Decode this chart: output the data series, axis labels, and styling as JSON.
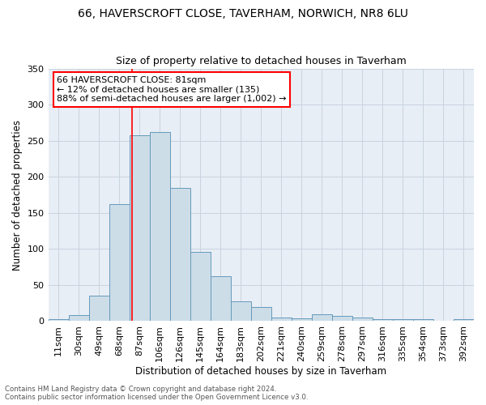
{
  "title1": "66, HAVERSCROFT CLOSE, TAVERHAM, NORWICH, NR8 6LU",
  "title2": "Size of property relative to detached houses in Taverham",
  "xlabel": "Distribution of detached houses by size in Taverham",
  "ylabel": "Number of detached properties",
  "bar_labels": [
    "11sqm",
    "30sqm",
    "49sqm",
    "68sqm",
    "87sqm",
    "106sqm",
    "126sqm",
    "145sqm",
    "164sqm",
    "183sqm",
    "202sqm",
    "221sqm",
    "240sqm",
    "259sqm",
    "278sqm",
    "297sqm",
    "316sqm",
    "335sqm",
    "354sqm",
    "373sqm",
    "392sqm"
  ],
  "bar_values": [
    3,
    8,
    35,
    162,
    258,
    262,
    185,
    96,
    62,
    28,
    20,
    5,
    4,
    10,
    7,
    5,
    3,
    3,
    3,
    0,
    3
  ],
  "bar_color": "#ccdde8",
  "bar_edge_color": "#6699bb",
  "vline_color": "red",
  "vline_x_index": 3.63,
  "annotation_text": "66 HAVERSCROFT CLOSE: 81sqm\n← 12% of detached houses are smaller (135)\n88% of semi-detached houses are larger (1,002) →",
  "annotation_box_color": "white",
  "annotation_box_edge_color": "red",
  "plot_bg_color": "#e8eef5",
  "grid_color": "#c8d4e0",
  "ylim": [
    0,
    350
  ],
  "yticks": [
    0,
    50,
    100,
    150,
    200,
    250,
    300,
    350
  ],
  "footnote1": "Contains HM Land Registry data © Crown copyright and database right 2024.",
  "footnote2": "Contains public sector information licensed under the Open Government Licence v3.0."
}
